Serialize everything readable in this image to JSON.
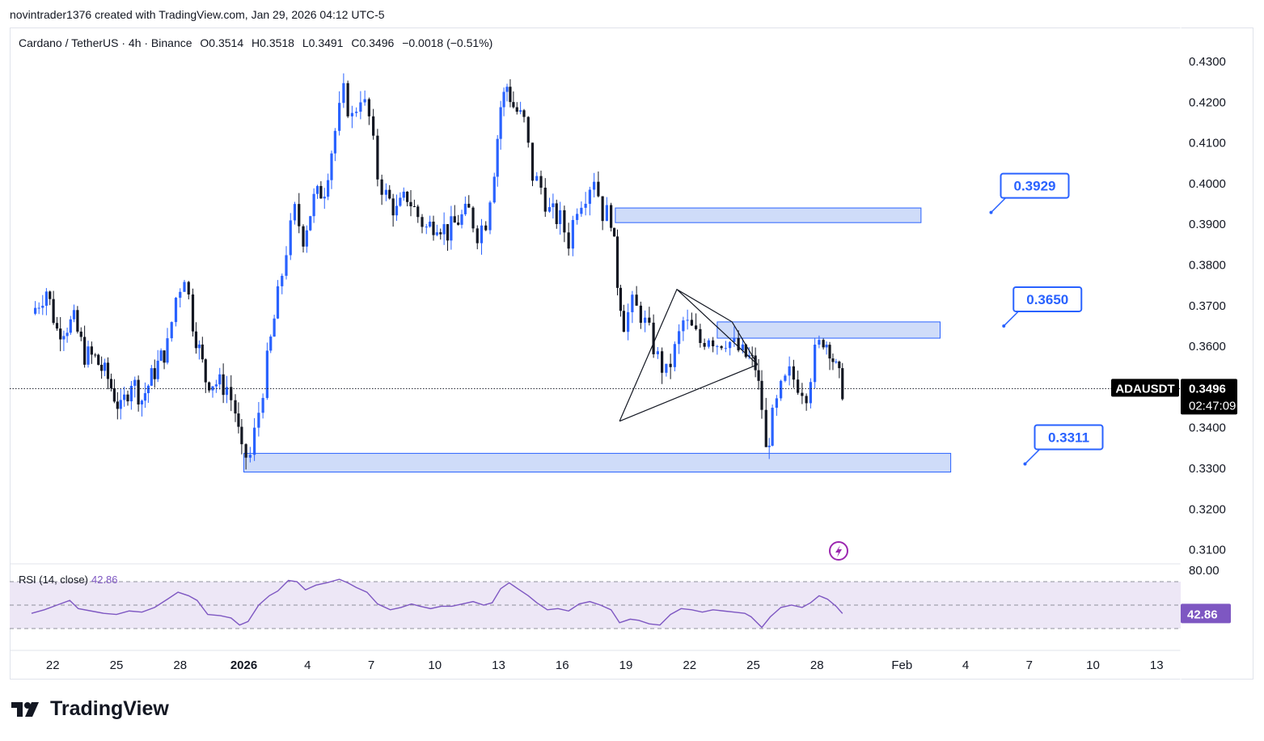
{
  "header": {
    "text": "novintrader1376 created with TradingView.com, Jan 29, 2026 04:12 UTC-5"
  },
  "legend": {
    "symbol": "Cardano / TetherUS · 4h · Binance",
    "open": "O0.3514",
    "high": "H0.3518",
    "low": "L0.3491",
    "close": "C0.3496",
    "change": "−0.0018 (−0.51%)"
  },
  "ticker": {
    "name": "ADAUSDT",
    "price": "0.3496",
    "countdown": "02:47:09"
  },
  "rsi": {
    "label": "RSI (14, close)",
    "value": "42.86",
    "axis_top": "80.00",
    "badge": "42.86"
  },
  "footer": {
    "brand": "TradingView"
  },
  "colors": {
    "up": "#2962ff",
    "down": "#131722",
    "zone": "#bbcdf7",
    "rsi": "#7e57c2",
    "rsi_band": "#ede7f6"
  },
  "chart_data": {
    "type": "candlestick",
    "title": "Cardano / TetherUS · 4h · Binance",
    "ylim": [
      0.306,
      0.438
    ],
    "y_ticks": [
      "0.4300",
      "0.4200",
      "0.4100",
      "0.4000",
      "0.3900",
      "0.3800",
      "0.3700",
      "0.3600",
      "0.3400",
      "0.3300",
      "0.3200",
      "0.3100"
    ],
    "x_ticks": [
      {
        "label": "22",
        "day": -8
      },
      {
        "label": "25",
        "day": -5
      },
      {
        "label": "28",
        "day": -2
      },
      {
        "label": "2026",
        "day": 1
      },
      {
        "label": "4",
        "day": 4
      },
      {
        "label": "7",
        "day": 7
      },
      {
        "label": "10",
        "day": 10
      },
      {
        "label": "13",
        "day": 13
      },
      {
        "label": "16",
        "day": 16
      },
      {
        "label": "19",
        "day": 19
      },
      {
        "label": "22",
        "day": 22
      },
      {
        "label": "25",
        "day": 25
      },
      {
        "label": "28",
        "day": 28
      },
      {
        "label": "Feb",
        "day": 32
      },
      {
        "label": "4",
        "day": 35
      },
      {
        "label": "7",
        "day": 38
      },
      {
        "label": "10",
        "day": 41
      },
      {
        "label": "13",
        "day": 44
      }
    ],
    "path": [
      [
        -9,
        0.368
      ],
      [
        -8.3,
        0.374
      ],
      [
        -7.8,
        0.364
      ],
      [
        -7,
        0.366
      ],
      [
        -6.5,
        0.358
      ],
      [
        -6,
        0.357
      ],
      [
        -5.4,
        0.352
      ],
      [
        -4.8,
        0.344
      ],
      [
        -4.3,
        0.352
      ],
      [
        -3.8,
        0.347
      ],
      [
        -3.2,
        0.354
      ],
      [
        -2.6,
        0.36
      ],
      [
        -2.2,
        0.372
      ],
      [
        -1.8,
        0.378
      ],
      [
        -1.4,
        0.366
      ],
      [
        -0.8,
        0.352
      ],
      [
        -0.3,
        0.351
      ],
      [
        0.2,
        0.35
      ],
      [
        0.6,
        0.344
      ],
      [
        0.9,
        0.333
      ],
      [
        1.3,
        0.333
      ],
      [
        1.7,
        0.344
      ],
      [
        2.1,
        0.356
      ],
      [
        2.6,
        0.372
      ],
      [
        3.0,
        0.384
      ],
      [
        3.4,
        0.393
      ],
      [
        3.8,
        0.387
      ],
      [
        4.3,
        0.396
      ],
      [
        4.8,
        0.399
      ],
      [
        5.3,
        0.413
      ],
      [
        5.7,
        0.422
      ],
      [
        6.1,
        0.416
      ],
      [
        6.5,
        0.422
      ],
      [
        6.9,
        0.416
      ],
      [
        7.3,
        0.402
      ],
      [
        7.7,
        0.397
      ],
      [
        8.2,
        0.393
      ],
      [
        8.7,
        0.397
      ],
      [
        9.2,
        0.392
      ],
      [
        9.6,
        0.389
      ],
      [
        10.1,
        0.391
      ],
      [
        10.6,
        0.388
      ],
      [
        11.1,
        0.391
      ],
      [
        11.6,
        0.393
      ],
      [
        12.0,
        0.388
      ],
      [
        12.4,
        0.391
      ],
      [
        12.8,
        0.404
      ],
      [
        13.1,
        0.419
      ],
      [
        13.4,
        0.424
      ],
      [
        13.7,
        0.419
      ],
      [
        14.2,
        0.415
      ],
      [
        14.6,
        0.402
      ],
      [
        15.0,
        0.399
      ],
      [
        15.4,
        0.393
      ],
      [
        15.9,
        0.391
      ],
      [
        16.3,
        0.386
      ],
      [
        16.7,
        0.395
      ],
      [
        17.1,
        0.398
      ],
      [
        17.5,
        0.402
      ],
      [
        17.9,
        0.393
      ],
      [
        18.3,
        0.392
      ],
      [
        18.6,
        0.376
      ],
      [
        18.9,
        0.366
      ],
      [
        19.3,
        0.37
      ],
      [
        19.7,
        0.368
      ],
      [
        20.1,
        0.363
      ],
      [
        20.5,
        0.357
      ],
      [
        20.9,
        0.353
      ],
      [
        21.3,
        0.359
      ],
      [
        21.7,
        0.366
      ],
      [
        22.1,
        0.364
      ],
      [
        22.5,
        0.361
      ],
      [
        22.9,
        0.363
      ],
      [
        23.3,
        0.361
      ],
      [
        23.7,
        0.362
      ],
      [
        24.1,
        0.36
      ],
      [
        24.5,
        0.358
      ],
      [
        24.8,
        0.357
      ],
      [
        25.1,
        0.355
      ],
      [
        25.4,
        0.345
      ],
      [
        25.6,
        0.334
      ],
      [
        25.9,
        0.342
      ],
      [
        26.3,
        0.349
      ],
      [
        26.7,
        0.353
      ],
      [
        27.1,
        0.351
      ],
      [
        27.5,
        0.349
      ],
      [
        27.9,
        0.358
      ],
      [
        28.3,
        0.362
      ],
      [
        28.6,
        0.36
      ],
      [
        28.9,
        0.354
      ],
      [
        29.2,
        0.3496
      ]
    ],
    "zones": [
      {
        "value": "0.3929",
        "d1": 18.5,
        "d2": 32.9,
        "low": 0.3904,
        "high": 0.394,
        "callout_day": 36.2,
        "callout_price": 0.3929
      },
      {
        "value": "0.3650",
        "d1": 23.3,
        "d2": 33.8,
        "low": 0.362,
        "high": 0.366,
        "callout_day": 36.8,
        "callout_price": 0.365
      },
      {
        "value": "0.3311",
        "d1": 1.0,
        "d2": 34.3,
        "low": 0.3291,
        "high": 0.3337,
        "callout_day": 37.8,
        "callout_price": 0.3311
      }
    ],
    "triangle": {
      "points": [
        [
          18.7,
          0.3416
        ],
        [
          21.4,
          0.374
        ],
        [
          24.0,
          0.366
        ],
        [
          25.2,
          0.3555
        ]
      ]
    },
    "last_price": 0.3496,
    "rsi": {
      "ylim": [
        20,
        80
      ],
      "band": [
        30,
        70
      ],
      "values": [
        [
          -9,
          43
        ],
        [
          -8.4,
          46
        ],
        [
          -7.8,
          50
        ],
        [
          -7.2,
          54
        ],
        [
          -6.8,
          47
        ],
        [
          -6.2,
          45
        ],
        [
          -5.6,
          43
        ],
        [
          -5,
          42
        ],
        [
          -4.4,
          45
        ],
        [
          -3.8,
          44
        ],
        [
          -3.2,
          48
        ],
        [
          -2.6,
          55
        ],
        [
          -2.1,
          61
        ],
        [
          -1.6,
          58
        ],
        [
          -1.2,
          54
        ],
        [
          -0.7,
          42
        ],
        [
          -0.1,
          41
        ],
        [
          0.4,
          39
        ],
        [
          0.8,
          33
        ],
        [
          1.2,
          36
        ],
        [
          1.7,
          50
        ],
        [
          2.2,
          58
        ],
        [
          2.6,
          62
        ],
        [
          3.1,
          71
        ],
        [
          3.5,
          70
        ],
        [
          3.9,
          63
        ],
        [
          4.4,
          67
        ],
        [
          4.9,
          69
        ],
        [
          5.5,
          72
        ],
        [
          5.9,
          69
        ],
        [
          6.3,
          65
        ],
        [
          6.8,
          61
        ],
        [
          7.3,
          51
        ],
        [
          7.9,
          46
        ],
        [
          8.4,
          48
        ],
        [
          8.9,
          51
        ],
        [
          9.3,
          49
        ],
        [
          9.8,
          47
        ],
        [
          10.3,
          49
        ],
        [
          10.8,
          49
        ],
        [
          11.3,
          51
        ],
        [
          11.8,
          53
        ],
        [
          12.3,
          50
        ],
        [
          12.7,
          52
        ],
        [
          13.1,
          64
        ],
        [
          13.5,
          69
        ],
        [
          13.9,
          64
        ],
        [
          14.4,
          58
        ],
        [
          14.8,
          52
        ],
        [
          15.3,
          46
        ],
        [
          15.8,
          47
        ],
        [
          16.3,
          45
        ],
        [
          16.8,
          51
        ],
        [
          17.3,
          53
        ],
        [
          17.8,
          50
        ],
        [
          18.3,
          46
        ],
        [
          18.7,
          35
        ],
        [
          19.2,
          38
        ],
        [
          19.6,
          37
        ],
        [
          20.1,
          34
        ],
        [
          20.6,
          33
        ],
        [
          21.1,
          42
        ],
        [
          21.6,
          47
        ],
        [
          22.1,
          46
        ],
        [
          22.6,
          44
        ],
        [
          23.1,
          46
        ],
        [
          23.6,
          45
        ],
        [
          24.1,
          44
        ],
        [
          24.6,
          43
        ],
        [
          24.9,
          40
        ],
        [
          25.4,
          31
        ],
        [
          25.8,
          40
        ],
        [
          26.3,
          48
        ],
        [
          26.8,
          50
        ],
        [
          27.3,
          48
        ],
        [
          27.7,
          52
        ],
        [
          28.1,
          58
        ],
        [
          28.5,
          55
        ],
        [
          28.9,
          49
        ],
        [
          29.2,
          42.86
        ]
      ]
    }
  }
}
